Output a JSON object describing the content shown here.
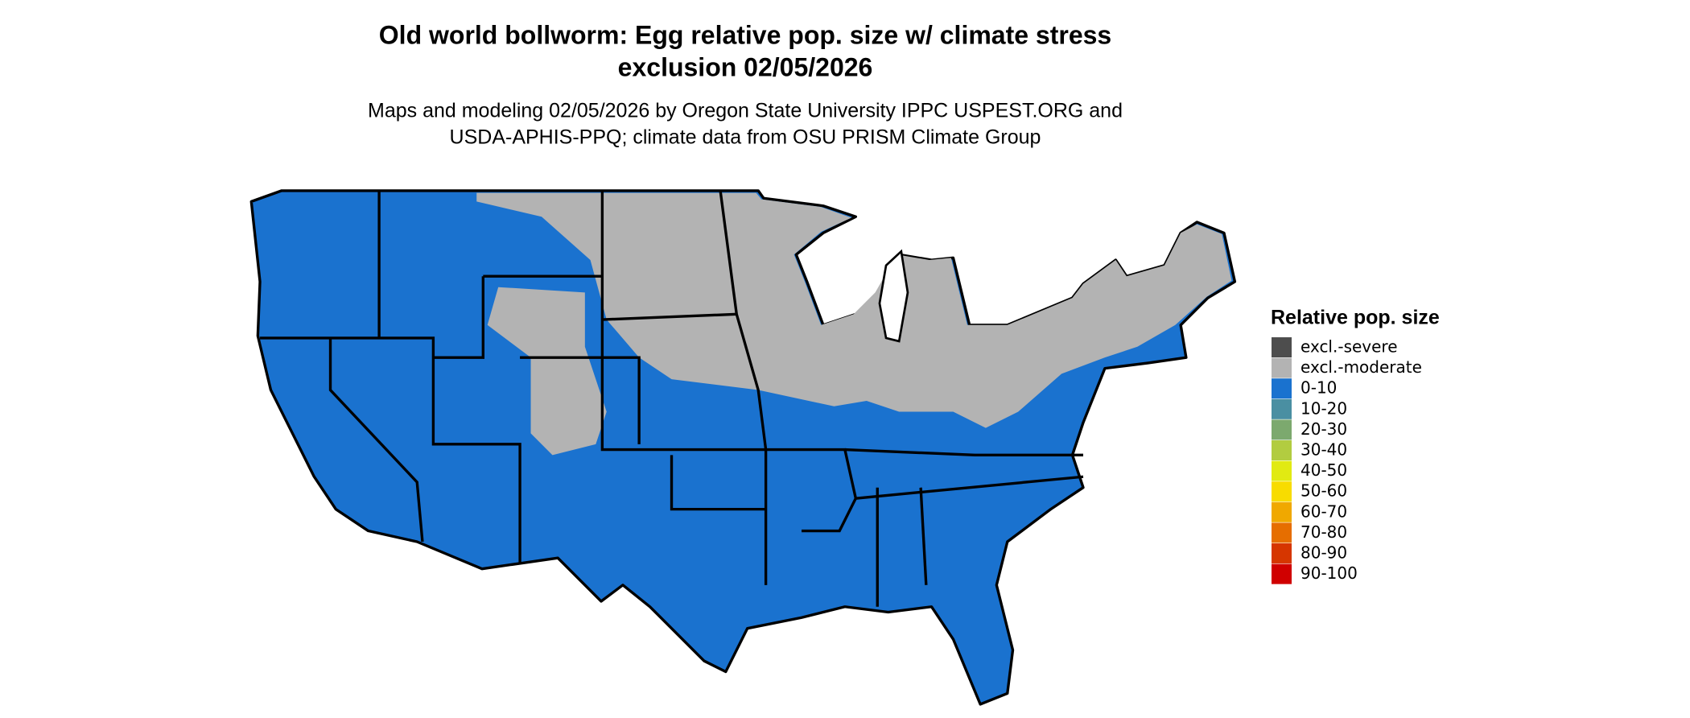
{
  "header": {
    "title_lines": [
      "Old world bollworm: Egg relative pop. size w/ climate stress",
      "exclusion 02/05/2026"
    ],
    "subtitle_lines": [
      "Maps and modeling 02/05/2026 by Oregon State University IPPC USPEST.ORG and",
      "USDA-APHIS-PPQ; climate data from OSU PRISM Climate Group"
    ]
  },
  "legend": {
    "title": "Relative pop. size",
    "items": [
      {
        "label": "excl.-severe",
        "color": "#4d4d4d"
      },
      {
        "label": "excl.-moderate",
        "color": "#b3b3b3"
      },
      {
        "label": "0-10",
        "color": "#1a72cf"
      },
      {
        "label": "10-20",
        "color": "#4a8fa2"
      },
      {
        "label": "20-30",
        "color": "#7ca96e"
      },
      {
        "label": "30-40",
        "color": "#b2cc40"
      },
      {
        "label": "40-50",
        "color": "#e1ea12"
      },
      {
        "label": "50-60",
        "color": "#f8dc00"
      },
      {
        "label": "60-70",
        "color": "#f0a800"
      },
      {
        "label": "70-80",
        "color": "#e66e00"
      },
      {
        "label": "80-90",
        "color": "#d63600"
      },
      {
        "label": "90-100",
        "color": "#d00000"
      }
    ]
  }
}
